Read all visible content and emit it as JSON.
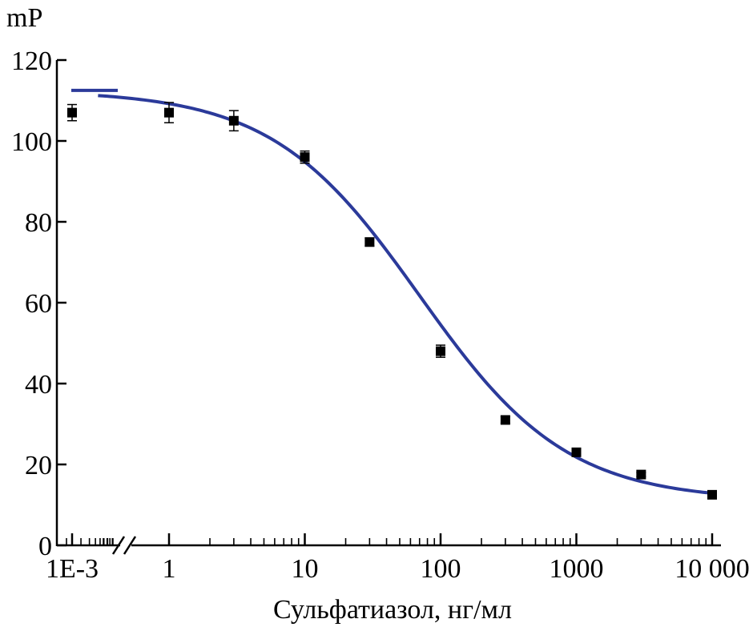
{
  "chart_data": {
    "type": "scatter",
    "title": "",
    "xlabel": "Сульфатиазол, нг/мл",
    "ylabel": "mP",
    "x_scale": "log",
    "x_axis_break": true,
    "ylim": [
      0,
      120
    ],
    "y_ticks": [
      0,
      20,
      40,
      60,
      80,
      100,
      120
    ],
    "x_ticks": [
      {
        "value": 0.001,
        "label": "1E-3"
      },
      {
        "value": 1,
        "label": "1"
      },
      {
        "value": 10,
        "label": "10"
      },
      {
        "value": 100,
        "label": "100"
      },
      {
        "value": 1000,
        "label": "1000"
      },
      {
        "value": 10000,
        "label": "10 000"
      }
    ],
    "points": [
      {
        "x": 0.001,
        "y": 107.0,
        "err": 2.0
      },
      {
        "x": 1,
        "y": 107.0,
        "err": 2.5
      },
      {
        "x": 3,
        "y": 105.0,
        "err": 2.5
      },
      {
        "x": 10,
        "y": 96.0,
        "err": 1.5
      },
      {
        "x": 30,
        "y": 75.0,
        "err": 1.0
      },
      {
        "x": 100,
        "y": 48.0,
        "err": 1.5
      },
      {
        "x": 300,
        "y": 31.0,
        "err": 0.8
      },
      {
        "x": 1000,
        "y": 23.0,
        "err": 0.8
      },
      {
        "x": 3000,
        "y": 17.5,
        "err": 0.5
      },
      {
        "x": 10000,
        "y": 12.5,
        "err": 0.5
      }
    ],
    "fit": {
      "model": "4PL",
      "top": 112.5,
      "bottom": 11,
      "ec50": 70,
      "hill": 0.8,
      "line_segment_before_break": {
        "y": 112.5
      }
    },
    "colors": {
      "fit_line": "#2b3a9a",
      "marker": "#000000",
      "axis": "#000000"
    },
    "grid": false,
    "legend": "none"
  }
}
